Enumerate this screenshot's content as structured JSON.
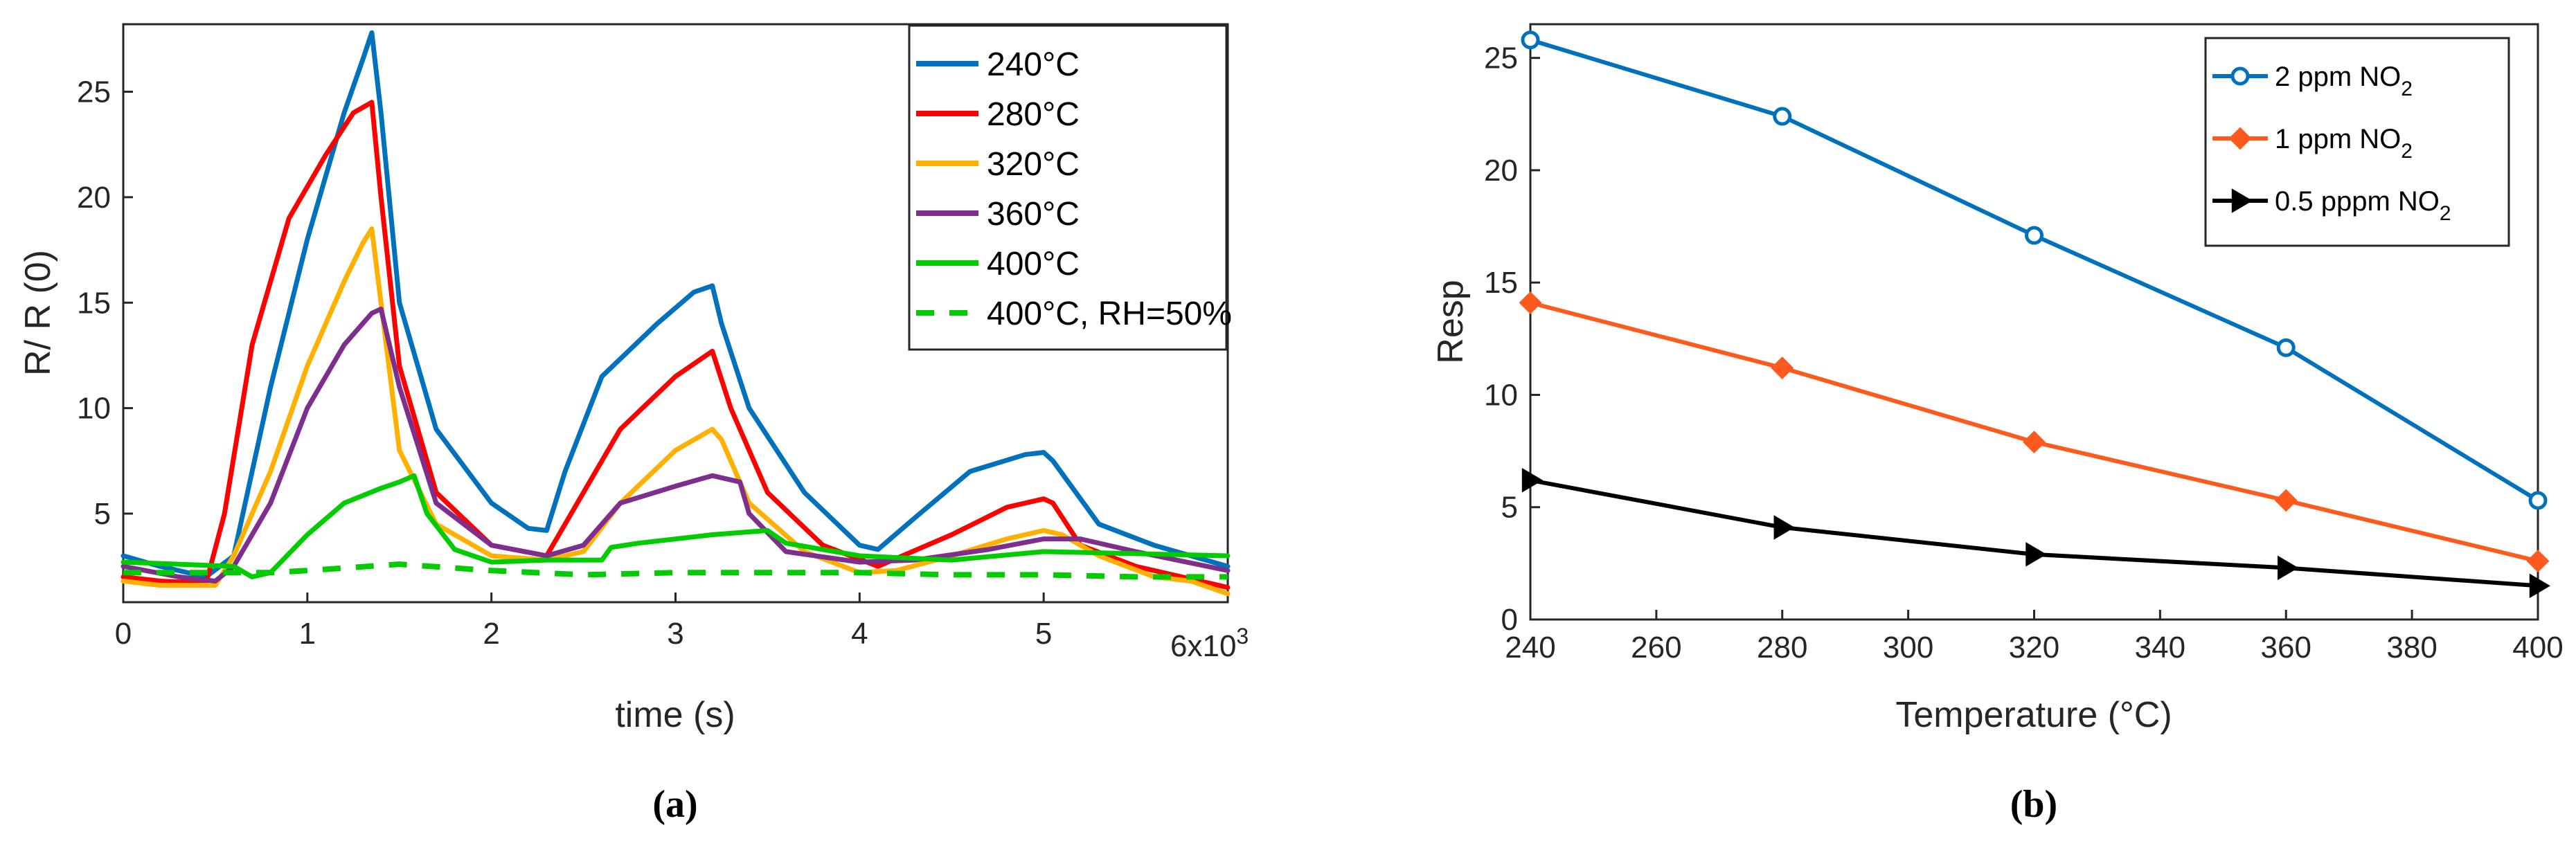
{
  "colors": {
    "c240": "#0072BD",
    "c280": "#FF0000",
    "c320": "#FFB000",
    "c360": "#7E2F8E",
    "c400": "#00CC00",
    "blue": "#0072BD",
    "orange": "#FF5A1E",
    "black": "#000000"
  },
  "chart_data": [
    {
      "type": "line",
      "panel_label": "(a)",
      "xlabel": "time (s)",
      "ylabel": "R/ R (0)",
      "x_multiplier": "6x10",
      "x_multiplier_exp": "3",
      "xlim": [
        0,
        6
      ],
      "ylim": [
        0.8,
        28.2
      ],
      "xticks": [
        0,
        1,
        2,
        3,
        4,
        5
      ],
      "yticks": [
        5,
        10,
        15,
        20,
        25
      ],
      "legend_position": "top-right",
      "series": [
        {
          "name": "240°C",
          "key": "c240",
          "style": "solid",
          "x": [
            0,
            0.2,
            0.45,
            0.6,
            0.8,
            1.0,
            1.2,
            1.3,
            1.35,
            1.4,
            1.5,
            1.7,
            2.0,
            2.2,
            2.3,
            2.4,
            2.6,
            2.9,
            3.1,
            3.2,
            3.25,
            3.4,
            3.7,
            4.0,
            4.1,
            4.3,
            4.6,
            4.9,
            5.0,
            5.05,
            5.3,
            5.6,
            6.0
          ],
          "y": [
            3.0,
            2.5,
            2.0,
            3.0,
            11,
            18,
            24,
            26.5,
            27.8,
            24,
            15,
            9,
            5.5,
            4.3,
            4.2,
            7,
            11.5,
            14,
            15.5,
            15.8,
            14,
            10,
            6,
            3.5,
            3.3,
            4.8,
            7,
            7.8,
            7.9,
            7.5,
            4.5,
            3.5,
            2.5
          ]
        },
        {
          "name": "280°C",
          "key": "c280",
          "style": "solid",
          "x": [
            0,
            0.2,
            0.45,
            0.55,
            0.7,
            0.9,
            1.1,
            1.25,
            1.35,
            1.4,
            1.5,
            1.7,
            2.0,
            2.3,
            2.5,
            2.7,
            3.0,
            3.2,
            3.3,
            3.5,
            3.8,
            4.1,
            4.5,
            4.8,
            5.0,
            5.05,
            5.2,
            5.5,
            6.0
          ],
          "y": [
            2.0,
            1.8,
            1.7,
            5,
            13,
            19,
            22,
            24,
            24.5,
            20,
            12,
            6,
            3.5,
            3.0,
            6,
            9,
            11.5,
            12.7,
            10,
            6,
            3.5,
            2.5,
            4,
            5.3,
            5.7,
            5.5,
            3.5,
            2.5,
            1.5
          ]
        },
        {
          "name": "320°C",
          "key": "c320",
          "style": "solid",
          "x": [
            0,
            0.2,
            0.5,
            0.6,
            0.8,
            1.0,
            1.2,
            1.3,
            1.35,
            1.4,
            1.5,
            1.7,
            2.0,
            2.3,
            2.5,
            2.7,
            3.0,
            3.2,
            3.25,
            3.4,
            3.7,
            4.0,
            4.2,
            4.5,
            4.8,
            5.0,
            5.1,
            5.3,
            5.6,
            5.8,
            6.0
          ],
          "y": [
            1.8,
            1.6,
            1.6,
            3,
            7,
            12,
            16,
            17.8,
            18.5,
            15,
            8,
            4.5,
            3,
            2.8,
            3.2,
            5.5,
            8,
            9,
            8.5,
            5.5,
            3.2,
            2.2,
            2.3,
            3,
            3.8,
            4.2,
            4,
            3,
            2.0,
            1.8,
            1.2
          ]
        },
        {
          "name": "360°C",
          "key": "c360",
          "style": "solid",
          "x": [
            0,
            0.3,
            0.5,
            0.6,
            0.8,
            1.0,
            1.2,
            1.35,
            1.4,
            1.5,
            1.7,
            2.0,
            2.3,
            2.5,
            2.6,
            2.7,
            3.0,
            3.2,
            3.35,
            3.4,
            3.6,
            4.0,
            4.3,
            4.7,
            5.0,
            5.2,
            5.5,
            6.0
          ],
          "y": [
            2.5,
            2.0,
            1.8,
            2.5,
            5.5,
            10,
            13,
            14.5,
            14.7,
            11,
            5.5,
            3.5,
            3,
            3.5,
            4.5,
            5.5,
            6.3,
            6.8,
            6.5,
            5,
            3.2,
            2.7,
            2.8,
            3.3,
            3.8,
            3.8,
            3.2,
            2.3
          ]
        },
        {
          "name": "400°C",
          "key": "c400",
          "style": "solid",
          "x": [
            0,
            0.3,
            0.6,
            0.7,
            0.8,
            1.0,
            1.2,
            1.4,
            1.5,
            1.58,
            1.65,
            1.8,
            2.0,
            2.3,
            2.6,
            2.65,
            2.8,
            3.2,
            3.5,
            3.6,
            4.0,
            4.5,
            5.0,
            5.5,
            6.0
          ],
          "y": [
            2.7,
            2.6,
            2.5,
            2.0,
            2.2,
            4,
            5.5,
            6.2,
            6.5,
            6.8,
            5,
            3.3,
            2.7,
            2.8,
            2.8,
            3.4,
            3.6,
            4.0,
            4.2,
            3.6,
            3.0,
            2.8,
            3.2,
            3.1,
            3.0
          ]
        },
        {
          "name": "400°C, RH=50%",
          "key": "c400",
          "style": "dashed",
          "x": [
            0,
            0.5,
            0.8,
            1.0,
            1.5,
            2.0,
            2.5,
            3.0,
            3.5,
            4.0,
            4.5,
            5.0,
            5.5,
            6.0
          ],
          "y": [
            2.2,
            2.2,
            2.2,
            2.3,
            2.6,
            2.3,
            2.1,
            2.2,
            2.2,
            2.2,
            2.1,
            2.1,
            2.0,
            2.0
          ]
        }
      ]
    },
    {
      "type": "line",
      "panel_label": "(b)",
      "xlabel": "Temperature (°C)",
      "ylabel": "Resp",
      "xlim": [
        240,
        400
      ],
      "ylim": [
        0,
        26.5
      ],
      "xticks": [
        240,
        260,
        280,
        300,
        320,
        340,
        360,
        380,
        400
      ],
      "yticks": [
        0,
        5,
        10,
        15,
        20,
        25
      ],
      "legend_position": "top-right",
      "x": [
        240,
        280,
        320,
        360,
        400
      ],
      "series": [
        {
          "name": "2 ppm NO",
          "sub": "2",
          "key": "blue",
          "marker": "circle",
          "values": [
            25.8,
            22.4,
            17.1,
            12.1,
            5.3
          ]
        },
        {
          "name": "1 ppm NO",
          "sub": "2",
          "key": "orange",
          "marker": "diamond",
          "values": [
            14.1,
            11.2,
            7.9,
            5.3,
            2.6
          ]
        },
        {
          "name": "0.5 pppm NO",
          "sub": "2",
          "key": "black",
          "marker": "triangle-right",
          "values": [
            6.2,
            4.1,
            2.9,
            2.3,
            1.5
          ]
        }
      ]
    }
  ]
}
